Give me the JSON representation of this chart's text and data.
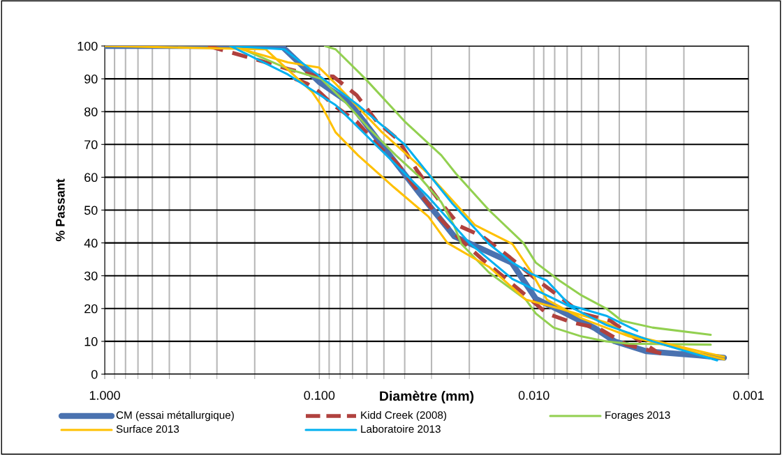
{
  "chart_data": {
    "type": "line",
    "xlabel": "Diamètre (mm)",
    "ylabel": "% Passant",
    "log": "x",
    "grid": true,
    "legend": "bottom",
    "marker": "none",
    "xlim": [
      1,
      0.001
    ],
    "xticks": [
      {
        "value": 1,
        "label": "1.000"
      },
      {
        "value": 0.1,
        "label": "0.100"
      },
      {
        "value": 0.01,
        "label": "0.010"
      },
      {
        "value": 0.001,
        "label": "0.001"
      }
    ],
    "ylim": [
      0,
      100
    ],
    "yticks": [
      0,
      10,
      20,
      30,
      40,
      50,
      60,
      70,
      80,
      90,
      100
    ],
    "series": [
      {
        "name": "CM (essai métallurgique)",
        "color": "#4a72b0",
        "line_style": "solid",
        "x": [
          1,
          0.15,
          0.1,
          0.072,
          0.05,
          0.034,
          0.0235,
          0.0127,
          0.0098,
          0.0076,
          0.0052,
          0.0042,
          0.003,
          0.0017,
          0.0013
        ],
        "values": [
          100,
          100,
          89,
          82.6,
          69,
          55,
          42,
          34,
          23,
          19.5,
          14,
          10,
          7,
          5.7,
          5
        ]
      },
      {
        "name": "Kidd Creek (2008)",
        "color": "#b0413e",
        "line_style": "dashed",
        "x": [
          0.33,
          0.2,
          0.14,
          0.105,
          0.086,
          0.067,
          0.054,
          0.043,
          0.035,
          0.027,
          0.022,
          0.0174,
          0.0129,
          0.0098,
          0.0081,
          0.006,
          0.0044,
          0.0037,
          0.0027,
          null,
          0.13,
          0.114,
          0.1,
          0.086,
          0.067,
          0.054,
          0.043,
          0.034,
          0.027,
          0.022,
          0.0174,
          0.0129,
          0.0109,
          0.0087,
          0.0066,
          0.005,
          0.0037,
          0.0025
        ],
        "values": [
          100,
          96,
          93,
          91,
          90.7,
          85,
          77,
          71.5,
          62,
          52,
          45,
          42,
          35.5,
          29,
          25,
          18.5,
          16.3,
          12.7,
          7,
          null,
          90,
          88.5,
          86,
          82,
          77,
          70,
          64,
          55,
          47,
          41,
          35,
          28,
          24,
          18.5,
          15.7,
          14,
          9,
          6.2
        ]
      },
      {
        "name": "Forages 2013",
        "color": "#92d050",
        "line_style": "solid",
        "x": [
          0.094,
          0.084,
          0.061,
          0.04,
          0.027,
          0.023,
          0.0162,
          0.0112,
          0.0098,
          0.0076,
          0.006,
          0.0046,
          0.0039,
          0.0028,
          0.0015,
          null,
          0.246,
          0.14,
          0.098,
          0.076,
          0.059,
          0.044,
          0.034,
          0.027,
          0.0236,
          0.0218,
          0.0162,
          0.0109,
          0.0098,
          0.0081,
          0.006,
          0.0046,
          0.0036,
          0.0015
        ],
        "values": [
          100,
          99,
          90,
          77,
          66.7,
          61,
          50,
          40,
          34,
          28.5,
          24,
          20,
          16.3,
          14.2,
          12,
          null,
          100,
          93,
          90,
          83,
          75,
          66.7,
          60,
          52.4,
          45.4,
          39.7,
          31,
          22.7,
          18.5,
          14.2,
          11.5,
          10,
          9.3,
          9
        ]
      },
      {
        "name": "Surface 2013",
        "color": "#ffc000",
        "line_style": "solid",
        "x": [
          1,
          0.178,
          0.108,
          0.098,
          0.084,
          0.066,
          0.045,
          0.031,
          0.0253,
          0.0162,
          0.0109,
          0.0076,
          0.0046,
          0.0036,
          0.0023,
          0.0013,
          null,
          0.26,
          0.14,
          0.1,
          0.084,
          0.051,
          0.031,
          0.0188,
          0.0126,
          0.0103,
          0.0087,
          0.006,
          0.0036,
          0.0013
        ],
        "values": [
          100,
          99,
          86,
          82,
          73.7,
          66.7,
          57,
          48,
          40,
          32.7,
          22.7,
          20,
          15.7,
          12,
          9,
          5.3,
          null,
          100,
          95,
          93.4,
          88.5,
          73.7,
          61,
          45.4,
          39.7,
          31.2,
          22.7,
          17,
          11.5,
          4.5
        ]
      },
      {
        "name": "Laboratoire 2013",
        "color": "#00b0f0",
        "line_style": "solid",
        "x": [
          0.26,
          0.14,
          0.084,
          0.051,
          0.031,
          0.02,
          0.0126,
          0.0087,
          0.007,
          0.0046,
          0.0028,
          0.0014,
          null,
          0.26,
          0.146,
          0.096,
          0.066,
          0.04,
          0.024,
          0.0162,
          0.0126,
          0.0103,
          0.0087,
          0.0068,
          0.0046,
          0.0033
        ],
        "values": [
          100,
          91.3,
          82,
          68,
          54,
          40,
          29,
          24,
          21,
          15,
          10,
          4.2,
          null,
          100,
          99,
          90,
          82,
          70,
          52,
          39.7,
          34,
          30.6,
          28.5,
          21,
          17.8,
          13.2
        ]
      }
    ]
  }
}
